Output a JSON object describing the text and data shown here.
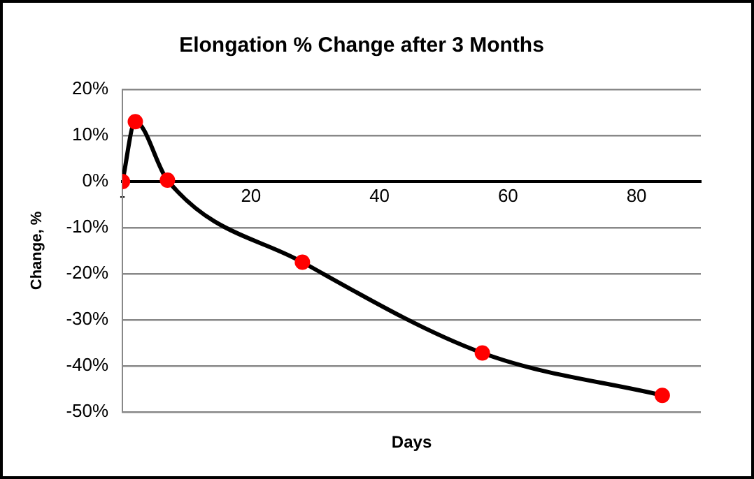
{
  "chart_data": {
    "type": "line",
    "title": "Elongation % Change after 3 Months",
    "xlabel": "Days",
    "ylabel": "Change, %",
    "x": [
      0,
      2,
      7,
      28,
      56,
      84
    ],
    "series": [
      {
        "color": "#000000",
        "colors": [
          "#ff0000",
          "#ff0000",
          "#ff0000",
          "#ff0000",
          "#ff0000",
          "#ff0000"
        ],
        "values": [
          0,
          13,
          0.3,
          -17.5,
          -37.2,
          -46.4
        ]
      }
    ],
    "xlim": [
      0,
      90
    ],
    "xticks": [
      {
        "value": 0,
        "label": "-"
      },
      20,
      40,
      60,
      80
    ],
    "ylim": [
      -50,
      20
    ],
    "yticks": [
      {
        "value": -50,
        "label": "-50%"
      },
      {
        "value": -40,
        "label": "-40%"
      },
      {
        "value": -30,
        "label": "-30%"
      },
      {
        "value": -20,
        "label": "-20%"
      },
      {
        "value": -10,
        "label": "-10%"
      },
      {
        "value": 0,
        "label": "0%"
      },
      {
        "value": 10,
        "label": "10%"
      },
      {
        "value": 20,
        "label": "20%"
      }
    ],
    "grid": "y",
    "legend": false,
    "marker": "circle",
    "line_style": "solid"
  }
}
